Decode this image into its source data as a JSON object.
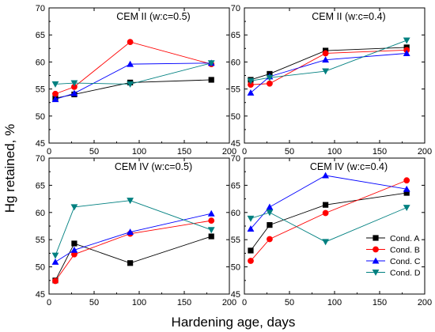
{
  "figure": {
    "ylabel": "Hg retained, %",
    "xlabel": "Hardening age, days"
  },
  "legend": {
    "placement": "lower-right panel, right side",
    "entries": [
      {
        "name": "Cond. A",
        "color": "#000000",
        "marker": "square"
      },
      {
        "name": "Cond. B",
        "color": "#ff0000",
        "marker": "circle"
      },
      {
        "name": "Cond. C",
        "color": "#0000ff",
        "marker": "triangle-up"
      },
      {
        "name": "Cond. D",
        "color": "#008080",
        "marker": "triangle-down"
      }
    ]
  },
  "chart_data": [
    {
      "type": "line",
      "title": "CEM II (w:c=0.5)",
      "xlim": [
        0,
        200
      ],
      "ylim": [
        45,
        70
      ],
      "xticks": [
        0,
        50,
        100,
        150,
        200
      ],
      "yticks": [
        45,
        50,
        55,
        60,
        65,
        70
      ],
      "series": [
        {
          "name": "Cond. A",
          "x": [
            7,
            28,
            90,
            180
          ],
          "y": [
            53.3,
            54.0,
            56.2,
            56.7
          ]
        },
        {
          "name": "Cond. B",
          "x": [
            7,
            28,
            90,
            180
          ],
          "y": [
            54.1,
            55.4,
            63.7,
            59.6
          ]
        },
        {
          "name": "Cond. C",
          "x": [
            7,
            28,
            90,
            180
          ],
          "y": [
            53.1,
            54.2,
            59.6,
            59.8
          ]
        },
        {
          "name": "Cond. D",
          "x": [
            7,
            28,
            90,
            180
          ],
          "y": [
            55.9,
            56.1,
            55.9,
            59.8
          ]
        }
      ]
    },
    {
      "type": "line",
      "title": "CEM II (w:c=0.4)",
      "xlim": [
        0,
        200
      ],
      "ylim": [
        45,
        70
      ],
      "xticks": [
        0,
        50,
        100,
        150,
        200
      ],
      "yticks": [
        45,
        50,
        55,
        60,
        65,
        70
      ],
      "series": [
        {
          "name": "Cond. A",
          "x": [
            7,
            28,
            90,
            180
          ],
          "y": [
            56.7,
            57.8,
            62.1,
            62.7
          ]
        },
        {
          "name": "Cond. B",
          "x": [
            7,
            28,
            90,
            180
          ],
          "y": [
            55.8,
            56.0,
            61.6,
            62.2
          ]
        },
        {
          "name": "Cond. C",
          "x": [
            7,
            28,
            90,
            180
          ],
          "y": [
            54.3,
            57.3,
            60.4,
            61.6
          ]
        },
        {
          "name": "Cond. D",
          "x": [
            7,
            28,
            90,
            180
          ],
          "y": [
            56.5,
            57.1,
            58.3,
            64.0
          ]
        }
      ]
    },
    {
      "type": "line",
      "title": "CEM IV (w:c=0.5)",
      "xlim": [
        0,
        200
      ],
      "ylim": [
        45,
        70
      ],
      "xticks": [
        0,
        50,
        100,
        150,
        200
      ],
      "yticks": [
        45,
        50,
        55,
        60,
        65,
        70
      ],
      "series": [
        {
          "name": "Cond. A",
          "x": [
            7,
            28,
            90,
            180
          ],
          "y": [
            47.5,
            54.3,
            50.7,
            55.6
          ]
        },
        {
          "name": "Cond. B",
          "x": [
            7,
            28,
            90,
            180
          ],
          "y": [
            47.4,
            52.3,
            56.1,
            58.5
          ]
        },
        {
          "name": "Cond. C",
          "x": [
            7,
            28,
            90,
            180
          ],
          "y": [
            50.9,
            53.1,
            56.4,
            59.8
          ]
        },
        {
          "name": "Cond. D",
          "x": [
            7,
            28,
            90,
            180
          ],
          "y": [
            52.1,
            61.0,
            62.2,
            56.8
          ]
        }
      ]
    },
    {
      "type": "line",
      "title": "CEM IV (w:c=0.4)",
      "xlim": [
        0,
        200
      ],
      "ylim": [
        45,
        70
      ],
      "xticks": [
        0,
        50,
        100,
        150,
        200
      ],
      "yticks": [
        45,
        50,
        55,
        60,
        65,
        70
      ],
      "series": [
        {
          "name": "Cond. A",
          "x": [
            7,
            28,
            90,
            180
          ],
          "y": [
            53.0,
            57.7,
            61.4,
            63.6
          ]
        },
        {
          "name": "Cond. B",
          "x": [
            7,
            28,
            90,
            180
          ],
          "y": [
            51.1,
            55.1,
            59.9,
            65.9
          ]
        },
        {
          "name": "Cond. C",
          "x": [
            7,
            28,
            90,
            180
          ],
          "y": [
            57.0,
            61.0,
            66.8,
            64.3
          ]
        },
        {
          "name": "Cond. D",
          "x": [
            7,
            28,
            90,
            180
          ],
          "y": [
            58.9,
            60.0,
            54.6,
            60.9
          ]
        }
      ]
    }
  ]
}
